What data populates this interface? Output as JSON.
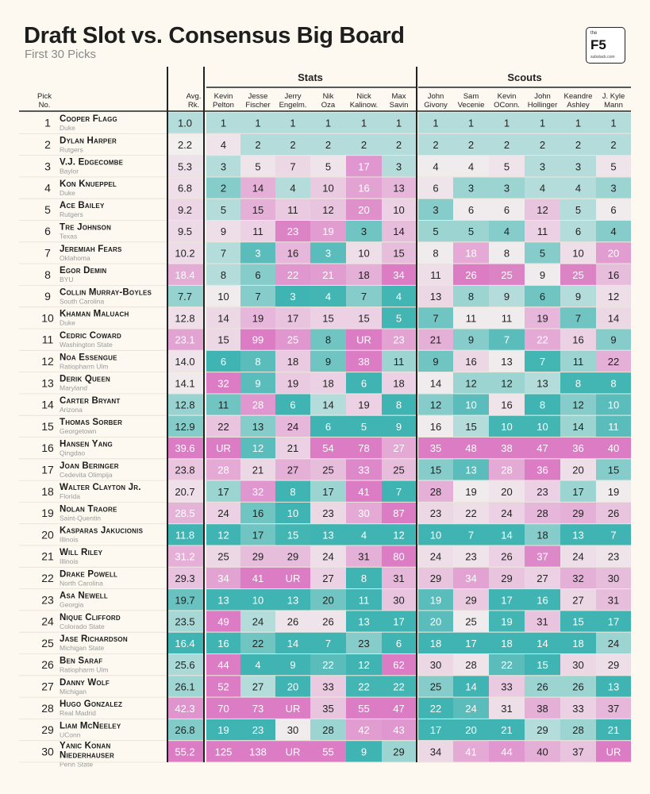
{
  "header": {
    "title": "Draft Slot vs. Consensus Big Board",
    "subtitle": "First 30 Picks",
    "logo_top": "the",
    "logo_main": "F5",
    "logo_bottom": "substack.com"
  },
  "colors": {
    "background": "#fdf9f0",
    "low_rank": "#3fb4b2",
    "neutral": "#f1f1ef",
    "high_rank": "#db7cc4"
  },
  "chart_data": {
    "type": "table",
    "column_groups": [
      {
        "label": "Stats"
      },
      {
        "label": "Scouts"
      }
    ],
    "columns": {
      "pick": [
        "Pick",
        "No."
      ],
      "avg": [
        "Avg.",
        "Rk."
      ],
      "stats": [
        [
          "Kevin",
          "Pelton"
        ],
        [
          "Jesse",
          "Fischer"
        ],
        [
          "Jerry",
          "Engelm."
        ],
        [
          "Nik",
          "Oza"
        ],
        [
          "Nick",
          "Kalinow."
        ],
        [
          "Max",
          "Savin"
        ]
      ],
      "scouts": [
        [
          "John",
          "Givony"
        ],
        [
          "Sam",
          "Vecenie"
        ],
        [
          "Kevin",
          "OConn."
        ],
        [
          "John",
          "Hollinger"
        ],
        [
          "Keandre",
          "Ashley"
        ],
        [
          "J. Kyle",
          "Mann"
        ]
      ]
    },
    "rows": [
      {
        "pick": 1,
        "name": [
          "Cooper Flagg"
        ],
        "school": "Duke",
        "avg": "1.0",
        "stats": [
          "1",
          "1",
          "1",
          "1",
          "1",
          "1"
        ],
        "scouts": [
          "1",
          "1",
          "1",
          "1",
          "1",
          "1"
        ]
      },
      {
        "pick": 2,
        "name": [
          "Dylan Harper"
        ],
        "school": "Rutgers",
        "avg": "2.2",
        "stats": [
          "4",
          "2",
          "2",
          "2",
          "2",
          "2"
        ],
        "scouts": [
          "2",
          "2",
          "2",
          "2",
          "2",
          "2"
        ]
      },
      {
        "pick": 3,
        "name": [
          "V.J. Edgecombe"
        ],
        "school": "Baylor",
        "avg": "5.3",
        "stats": [
          "3",
          "5",
          "7",
          "5",
          "17",
          "3"
        ],
        "scouts": [
          "4",
          "4",
          "5",
          "3",
          "3",
          "5"
        ]
      },
      {
        "pick": 4,
        "name": [
          "Kon Knueppel"
        ],
        "school": "Duke",
        "avg": "6.8",
        "stats": [
          "2",
          "14",
          "4",
          "10",
          "16",
          "13"
        ],
        "scouts": [
          "6",
          "3",
          "3",
          "4",
          "4",
          "3"
        ]
      },
      {
        "pick": 5,
        "name": [
          "Ace Bailey"
        ],
        "school": "Rutgers",
        "avg": "9.2",
        "stats": [
          "5",
          "15",
          "11",
          "12",
          "20",
          "10"
        ],
        "scouts": [
          "3",
          "6",
          "6",
          "12",
          "5",
          "6"
        ]
      },
      {
        "pick": 6,
        "name": [
          "Tre Johnson"
        ],
        "school": "Texas",
        "avg": "9.5",
        "stats": [
          "9",
          "11",
          "23",
          "19",
          "3",
          "14"
        ],
        "scouts": [
          "5",
          "5",
          "4",
          "11",
          "6",
          "4"
        ]
      },
      {
        "pick": 7,
        "name": [
          "Jeremiah Fears"
        ],
        "school": "Oklahoma",
        "avg": "10.2",
        "stats": [
          "7",
          "3",
          "16",
          "3",
          "10",
          "15"
        ],
        "scouts": [
          "8",
          "18",
          "8",
          "5",
          "10",
          "20"
        ]
      },
      {
        "pick": 8,
        "name": [
          "Egor Demin"
        ],
        "school": "BYU",
        "avg": "18.4",
        "stats": [
          "8",
          "6",
          "22",
          "21",
          "18",
          "34"
        ],
        "scouts": [
          "11",
          "26",
          "25",
          "9",
          "25",
          "16"
        ]
      },
      {
        "pick": 9,
        "name": [
          "Collin Murray-Boyles"
        ],
        "school": "South Carolina",
        "avg": "7.7",
        "stats": [
          "10",
          "7",
          "3",
          "4",
          "7",
          "4"
        ],
        "scouts": [
          "13",
          "8",
          "9",
          "6",
          "9",
          "12"
        ]
      },
      {
        "pick": 10,
        "name": [
          "Khaman Maluach"
        ],
        "school": "Duke",
        "avg": "12.8",
        "stats": [
          "14",
          "19",
          "17",
          "15",
          "15",
          "5"
        ],
        "scouts": [
          "7",
          "11",
          "11",
          "19",
          "7",
          "14"
        ]
      },
      {
        "pick": 11,
        "name": [
          "Cedric Coward"
        ],
        "school": "Washington State",
        "avg": "23.1",
        "stats": [
          "15",
          "99",
          "25",
          "8",
          "UR",
          "23"
        ],
        "scouts": [
          "21",
          "9",
          "7",
          "22",
          "16",
          "9"
        ]
      },
      {
        "pick": 12,
        "name": [
          "Noa Essengue"
        ],
        "school": "Ratiopharm Ulm",
        "avg": "14.0",
        "stats": [
          "6",
          "8",
          "18",
          "9",
          "38",
          "11"
        ],
        "scouts": [
          "9",
          "16",
          "13",
          "7",
          "11",
          "22"
        ]
      },
      {
        "pick": 13,
        "name": [
          "Derik Queen"
        ],
        "school": "Maryland",
        "avg": "14.1",
        "stats": [
          "32",
          "9",
          "19",
          "18",
          "6",
          "18"
        ],
        "scouts": [
          "14",
          "12",
          "12",
          "13",
          "8",
          "8"
        ]
      },
      {
        "pick": 14,
        "name": [
          "Carter Bryant"
        ],
        "school": "Arizona",
        "avg": "12.8",
        "stats": [
          "11",
          "28",
          "6",
          "14",
          "19",
          "8"
        ],
        "scouts": [
          "12",
          "10",
          "16",
          "8",
          "12",
          "10"
        ]
      },
      {
        "pick": 15,
        "name": [
          "Thomas Sorber"
        ],
        "school": "Georgetown",
        "avg": "12.9",
        "stats": [
          "22",
          "13",
          "24",
          "6",
          "5",
          "9"
        ],
        "scouts": [
          "16",
          "15",
          "10",
          "10",
          "14",
          "11"
        ]
      },
      {
        "pick": 16,
        "name": [
          "Hansen Yang"
        ],
        "school": "Qingdao",
        "avg": "39.6",
        "stats": [
          "UR",
          "12",
          "21",
          "54",
          "78",
          "27"
        ],
        "scouts": [
          "35",
          "48",
          "38",
          "47",
          "36",
          "40"
        ]
      },
      {
        "pick": 17,
        "name": [
          "Joan Beringer"
        ],
        "school": "Cedevita Olimpija",
        "avg": "23.8",
        "stats": [
          "28",
          "21",
          "27",
          "25",
          "33",
          "25"
        ],
        "scouts": [
          "15",
          "13",
          "28",
          "36",
          "20",
          "15"
        ]
      },
      {
        "pick": 18,
        "name": [
          "Walter Clayton Jr."
        ],
        "school": "Florida",
        "avg": "20.7",
        "stats": [
          "17",
          "32",
          "8",
          "17",
          "41",
          "7"
        ],
        "scouts": [
          "28",
          "19",
          "20",
          "23",
          "17",
          "19"
        ]
      },
      {
        "pick": 19,
        "name": [
          "Nolan Traore"
        ],
        "school": "Saint-Quentin",
        "avg": "28.5",
        "stats": [
          "24",
          "16",
          "10",
          "23",
          "30",
          "87"
        ],
        "scouts": [
          "23",
          "22",
          "24",
          "28",
          "29",
          "26"
        ]
      },
      {
        "pick": 20,
        "name": [
          "Kasparas Jakucionis"
        ],
        "school": "Illinois",
        "avg": "11.8",
        "stats": [
          "12",
          "17",
          "15",
          "13",
          "4",
          "12"
        ],
        "scouts": [
          "10",
          "7",
          "14",
          "18",
          "13",
          "7"
        ]
      },
      {
        "pick": 21,
        "name": [
          "Will Riley"
        ],
        "school": "Illinois",
        "avg": "31.2",
        "stats": [
          "25",
          "29",
          "29",
          "24",
          "31",
          "80"
        ],
        "scouts": [
          "24",
          "23",
          "26",
          "37",
          "24",
          "23"
        ]
      },
      {
        "pick": 22,
        "name": [
          "Drake Powell"
        ],
        "school": "North Carolina",
        "avg": "29.3",
        "stats": [
          "34",
          "41",
          "UR",
          "27",
          "8",
          "31"
        ],
        "scouts": [
          "29",
          "34",
          "29",
          "27",
          "32",
          "30"
        ]
      },
      {
        "pick": 23,
        "name": [
          "Asa Newell"
        ],
        "school": "Georgia",
        "avg": "19.7",
        "stats": [
          "13",
          "10",
          "13",
          "20",
          "11",
          "30"
        ],
        "scouts": [
          "19",
          "29",
          "17",
          "16",
          "27",
          "31"
        ]
      },
      {
        "pick": 24,
        "name": [
          "Nique Clifford"
        ],
        "school": "Colorado State",
        "avg": "23.5",
        "stats": [
          "49",
          "24",
          "26",
          "26",
          "13",
          "17"
        ],
        "scouts": [
          "20",
          "25",
          "19",
          "31",
          "15",
          "17"
        ]
      },
      {
        "pick": 25,
        "name": [
          "Jase Richardson"
        ],
        "school": "Michigan State",
        "avg": "16.4",
        "stats": [
          "16",
          "22",
          "14",
          "7",
          "23",
          "6"
        ],
        "scouts": [
          "18",
          "17",
          "18",
          "14",
          "18",
          "24"
        ]
      },
      {
        "pick": 26,
        "name": [
          "Ben Saraf"
        ],
        "school": "Ratiopharm Ulm",
        "avg": "25.6",
        "stats": [
          "44",
          "4",
          "9",
          "22",
          "12",
          "62"
        ],
        "scouts": [
          "30",
          "28",
          "22",
          "15",
          "30",
          "29"
        ]
      },
      {
        "pick": 27,
        "name": [
          "Danny Wolf"
        ],
        "school": "Michigan",
        "avg": "26.1",
        "stats": [
          "52",
          "27",
          "20",
          "33",
          "22",
          "22"
        ],
        "scouts": [
          "25",
          "14",
          "33",
          "26",
          "26",
          "13"
        ]
      },
      {
        "pick": 28,
        "name": [
          "Hugo Gonzalez"
        ],
        "school": "Real Madrid",
        "avg": "42.3",
        "stats": [
          "70",
          "73",
          "UR",
          "35",
          "55",
          "47"
        ],
        "scouts": [
          "22",
          "24",
          "31",
          "38",
          "33",
          "37"
        ]
      },
      {
        "pick": 29,
        "name": [
          "Liam McNeeley"
        ],
        "school": "UConn",
        "avg": "26.8",
        "stats": [
          "19",
          "23",
          "30",
          "28",
          "42",
          "43"
        ],
        "scouts": [
          "17",
          "20",
          "21",
          "29",
          "28",
          "21"
        ]
      },
      {
        "pick": 30,
        "name": [
          "Yanic Konan",
          "Niederhauser"
        ],
        "school": "Penn State",
        "avg": "55.2",
        "stats": [
          "125",
          "138",
          "UR",
          "55",
          "9",
          "29"
        ],
        "scouts": [
          "34",
          "41",
          "44",
          "40",
          "37",
          "UR"
        ]
      }
    ]
  }
}
